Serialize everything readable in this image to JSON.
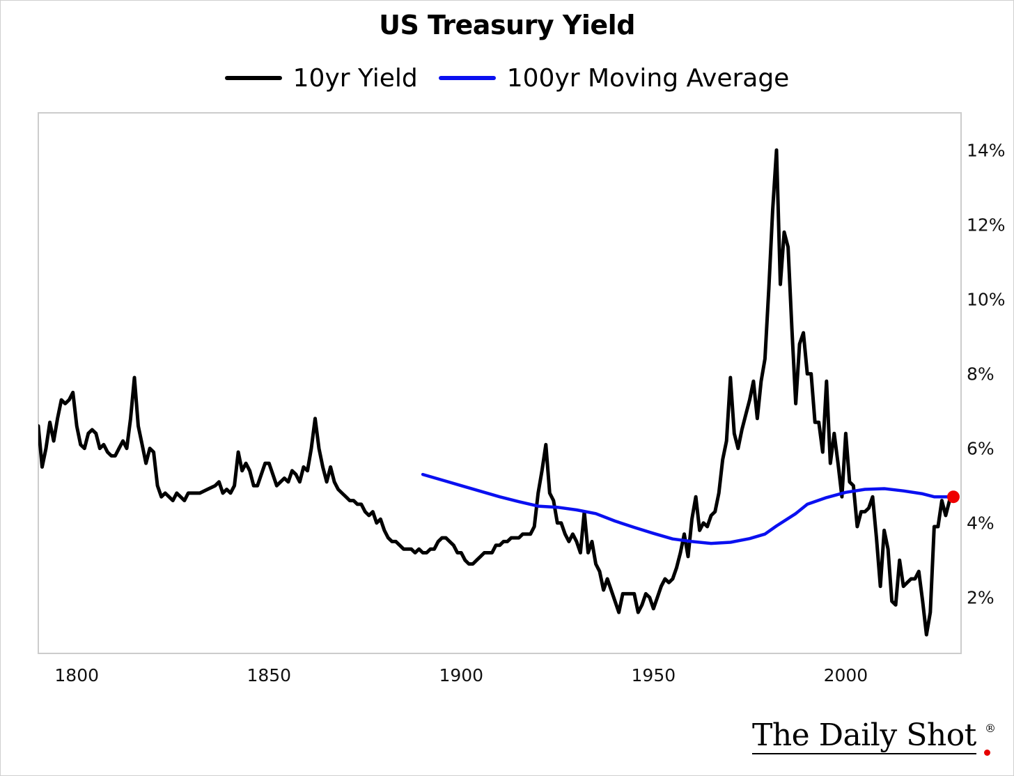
{
  "chart_data": {
    "type": "line",
    "title": "US Treasury Yield",
    "xlabel": "",
    "ylabel": "",
    "xlim": [
      1790,
      2030
    ],
    "ylim": [
      0.5,
      15.0
    ],
    "x_ticks": [
      1800,
      1850,
      1900,
      1950,
      2000
    ],
    "x_tick_labels": [
      "1800",
      "1850",
      "1900",
      "1950",
      "2000"
    ],
    "y_ticks": [
      2,
      4,
      6,
      8,
      10,
      12,
      14
    ],
    "y_tick_labels": [
      "2%",
      "4%",
      "6%",
      "8%",
      "10%",
      "12%",
      "14%"
    ],
    "y_axis_side": "right",
    "legend_position": "top-center",
    "grid": false,
    "series": [
      {
        "name": "10yr Yield",
        "color": "#000000",
        "points": [
          [
            1790,
            6.6
          ],
          [
            1791,
            5.5
          ],
          [
            1792,
            6.0
          ],
          [
            1793,
            6.7
          ],
          [
            1794,
            6.2
          ],
          [
            1795,
            6.8
          ],
          [
            1796,
            7.3
          ],
          [
            1797,
            7.2
          ],
          [
            1798,
            7.3
          ],
          [
            1799,
            7.5
          ],
          [
            1800,
            6.6
          ],
          [
            1801,
            6.1
          ],
          [
            1802,
            6.0
          ],
          [
            1803,
            6.4
          ],
          [
            1804,
            6.5
          ],
          [
            1805,
            6.4
          ],
          [
            1806,
            6.0
          ],
          [
            1807,
            6.1
          ],
          [
            1808,
            5.9
          ],
          [
            1809,
            5.8
          ],
          [
            1810,
            5.8
          ],
          [
            1811,
            6.0
          ],
          [
            1812,
            6.2
          ],
          [
            1813,
            6.0
          ],
          [
            1814,
            6.8
          ],
          [
            1815,
            7.9
          ],
          [
            1816,
            6.6
          ],
          [
            1817,
            6.1
          ],
          [
            1818,
            5.6
          ],
          [
            1819,
            6.0
          ],
          [
            1820,
            5.9
          ],
          [
            1821,
            5.0
          ],
          [
            1822,
            4.7
          ],
          [
            1823,
            4.8
          ],
          [
            1824,
            4.7
          ],
          [
            1825,
            4.6
          ],
          [
            1826,
            4.8
          ],
          [
            1827,
            4.7
          ],
          [
            1828,
            4.6
          ],
          [
            1829,
            4.8
          ],
          [
            1830,
            4.8
          ],
          [
            1832,
            4.8
          ],
          [
            1834,
            4.9
          ],
          [
            1836,
            5.0
          ],
          [
            1837,
            5.1
          ],
          [
            1838,
            4.8
          ],
          [
            1839,
            4.9
          ],
          [
            1840,
            4.8
          ],
          [
            1841,
            5.0
          ],
          [
            1842,
            5.9
          ],
          [
            1843,
            5.4
          ],
          [
            1844,
            5.6
          ],
          [
            1845,
            5.4
          ],
          [
            1846,
            5.0
          ],
          [
            1847,
            5.0
          ],
          [
            1848,
            5.3
          ],
          [
            1849,
            5.6
          ],
          [
            1850,
            5.6
          ],
          [
            1851,
            5.3
          ],
          [
            1852,
            5.0
          ],
          [
            1853,
            5.1
          ],
          [
            1854,
            5.2
          ],
          [
            1855,
            5.1
          ],
          [
            1856,
            5.4
          ],
          [
            1857,
            5.3
          ],
          [
            1858,
            5.1
          ],
          [
            1859,
            5.5
          ],
          [
            1860,
            5.4
          ],
          [
            1861,
            6.0
          ],
          [
            1862,
            6.8
          ],
          [
            1863,
            6.0
          ],
          [
            1864,
            5.5
          ],
          [
            1865,
            5.1
          ],
          [
            1866,
            5.5
          ],
          [
            1867,
            5.1
          ],
          [
            1868,
            4.9
          ],
          [
            1869,
            4.8
          ],
          [
            1870,
            4.7
          ],
          [
            1871,
            4.6
          ],
          [
            1872,
            4.6
          ],
          [
            1873,
            4.5
          ],
          [
            1874,
            4.5
          ],
          [
            1875,
            4.3
          ],
          [
            1876,
            4.2
          ],
          [
            1877,
            4.3
          ],
          [
            1878,
            4.0
          ],
          [
            1879,
            4.1
          ],
          [
            1880,
            3.8
          ],
          [
            1881,
            3.6
          ],
          [
            1882,
            3.5
          ],
          [
            1883,
            3.5
          ],
          [
            1884,
            3.4
          ],
          [
            1885,
            3.3
          ],
          [
            1886,
            3.3
          ],
          [
            1887,
            3.3
          ],
          [
            1888,
            3.2
          ],
          [
            1889,
            3.3
          ],
          [
            1890,
            3.2
          ],
          [
            1891,
            3.2
          ],
          [
            1892,
            3.3
          ],
          [
            1893,
            3.3
          ],
          [
            1894,
            3.5
          ],
          [
            1895,
            3.6
          ],
          [
            1896,
            3.6
          ],
          [
            1897,
            3.5
          ],
          [
            1898,
            3.4
          ],
          [
            1899,
            3.2
          ],
          [
            1900,
            3.2
          ],
          [
            1901,
            3.0
          ],
          [
            1902,
            2.9
          ],
          [
            1903,
            2.9
          ],
          [
            1904,
            3.0
          ],
          [
            1905,
            3.1
          ],
          [
            1906,
            3.2
          ],
          [
            1907,
            3.2
          ],
          [
            1908,
            3.2
          ],
          [
            1909,
            3.4
          ],
          [
            1910,
            3.4
          ],
          [
            1911,
            3.5
          ],
          [
            1912,
            3.5
          ],
          [
            1913,
            3.6
          ],
          [
            1914,
            3.6
          ],
          [
            1915,
            3.6
          ],
          [
            1916,
            3.7
          ],
          [
            1917,
            3.7
          ],
          [
            1918,
            3.7
          ],
          [
            1919,
            3.9
          ],
          [
            1920,
            4.8
          ],
          [
            1921,
            5.4
          ],
          [
            1922,
            6.1
          ],
          [
            1923,
            4.8
          ],
          [
            1924,
            4.6
          ],
          [
            1925,
            4.0
          ],
          [
            1926,
            4.0
          ],
          [
            1927,
            3.7
          ],
          [
            1928,
            3.5
          ],
          [
            1929,
            3.7
          ],
          [
            1930,
            3.5
          ],
          [
            1931,
            3.2
          ],
          [
            1932,
            4.3
          ],
          [
            1933,
            3.2
          ],
          [
            1934,
            3.5
          ],
          [
            1935,
            2.9
          ],
          [
            1936,
            2.7
          ],
          [
            1937,
            2.2
          ],
          [
            1938,
            2.5
          ],
          [
            1939,
            2.2
          ],
          [
            1940,
            1.9
          ],
          [
            1941,
            1.6
          ],
          [
            1942,
            2.1
          ],
          [
            1943,
            2.1
          ],
          [
            1944,
            2.1
          ],
          [
            1945,
            2.1
          ],
          [
            1946,
            1.6
          ],
          [
            1947,
            1.8
          ],
          [
            1948,
            2.1
          ],
          [
            1949,
            2.0
          ],
          [
            1950,
            1.7
          ],
          [
            1951,
            2.0
          ],
          [
            1952,
            2.3
          ],
          [
            1953,
            2.5
          ],
          [
            1954,
            2.4
          ],
          [
            1955,
            2.5
          ],
          [
            1956,
            2.8
          ],
          [
            1957,
            3.2
          ],
          [
            1958,
            3.7
          ],
          [
            1959,
            3.1
          ],
          [
            1960,
            4.1
          ],
          [
            1961,
            4.7
          ],
          [
            1962,
            3.8
          ],
          [
            1963,
            4.0
          ],
          [
            1964,
            3.9
          ],
          [
            1965,
            4.2
          ],
          [
            1966,
            4.3
          ],
          [
            1967,
            4.8
          ],
          [
            1968,
            5.7
          ],
          [
            1969,
            6.2
          ],
          [
            1970,
            7.9
          ],
          [
            1971,
            6.4
          ],
          [
            1972,
            6.0
          ],
          [
            1973,
            6.5
          ],
          [
            1974,
            6.9
          ],
          [
            1975,
            7.3
          ],
          [
            1976,
            7.8
          ],
          [
            1977,
            6.8
          ],
          [
            1978,
            7.8
          ],
          [
            1979,
            8.4
          ],
          [
            1980,
            10.3
          ],
          [
            1981,
            12.4
          ],
          [
            1982,
            14.0
          ],
          [
            1983,
            10.4
          ],
          [
            1984,
            11.8
          ],
          [
            1985,
            11.4
          ],
          [
            1986,
            9.2
          ],
          [
            1987,
            7.2
          ],
          [
            1988,
            8.8
          ],
          [
            1989,
            9.1
          ],
          [
            1990,
            8.0
          ],
          [
            1991,
            8.0
          ],
          [
            1992,
            6.7
          ],
          [
            1993,
            6.7
          ],
          [
            1994,
            5.9
          ],
          [
            1995,
            7.8
          ],
          [
            1996,
            5.6
          ],
          [
            1997,
            6.4
          ],
          [
            1998,
            5.6
          ],
          [
            1999,
            4.7
          ],
          [
            2000,
            6.4
          ],
          [
            2001,
            5.1
          ],
          [
            2002,
            5.0
          ],
          [
            2003,
            3.9
          ],
          [
            2004,
            4.3
          ],
          [
            2005,
            4.3
          ],
          [
            2006,
            4.4
          ],
          [
            2007,
            4.7
          ],
          [
            2008,
            3.6
          ],
          [
            2009,
            2.3
          ],
          [
            2010,
            3.8
          ],
          [
            2011,
            3.3
          ],
          [
            2012,
            1.9
          ],
          [
            2013,
            1.8
          ],
          [
            2014,
            3.0
          ],
          [
            2015,
            2.3
          ],
          [
            2016,
            2.4
          ],
          [
            2017,
            2.5
          ],
          [
            2018,
            2.5
          ],
          [
            2019,
            2.7
          ],
          [
            2020,
            1.9
          ],
          [
            2021,
            1.0
          ],
          [
            2022,
            1.6
          ],
          [
            2023,
            3.9
          ],
          [
            2024,
            3.9
          ],
          [
            2025,
            4.6
          ],
          [
            2026,
            4.2
          ],
          [
            2027,
            4.6
          ]
        ]
      },
      {
        "name": "100yr Moving Average",
        "color": "#0a10f0",
        "points": [
          [
            1890,
            5.3
          ],
          [
            1895,
            5.15
          ],
          [
            1900,
            5.0
          ],
          [
            1905,
            4.85
          ],
          [
            1910,
            4.7
          ],
          [
            1915,
            4.57
          ],
          [
            1920,
            4.45
          ],
          [
            1925,
            4.42
          ],
          [
            1930,
            4.35
          ],
          [
            1935,
            4.25
          ],
          [
            1940,
            4.05
          ],
          [
            1945,
            3.88
          ],
          [
            1950,
            3.72
          ],
          [
            1955,
            3.57
          ],
          [
            1960,
            3.5
          ],
          [
            1965,
            3.45
          ],
          [
            1970,
            3.48
          ],
          [
            1975,
            3.58
          ],
          [
            1979,
            3.7
          ],
          [
            1982,
            3.92
          ],
          [
            1987,
            4.25
          ],
          [
            1990,
            4.5
          ],
          [
            1995,
            4.68
          ],
          [
            2000,
            4.82
          ],
          [
            2005,
            4.9
          ],
          [
            2010,
            4.92
          ],
          [
            2015,
            4.86
          ],
          [
            2020,
            4.78
          ],
          [
            2023,
            4.7
          ],
          [
            2028,
            4.7
          ]
        ],
        "end_marker_color": "#ee0000"
      }
    ]
  },
  "source": {
    "brand": "The Daily Shot",
    "registered_mark": "®"
  }
}
